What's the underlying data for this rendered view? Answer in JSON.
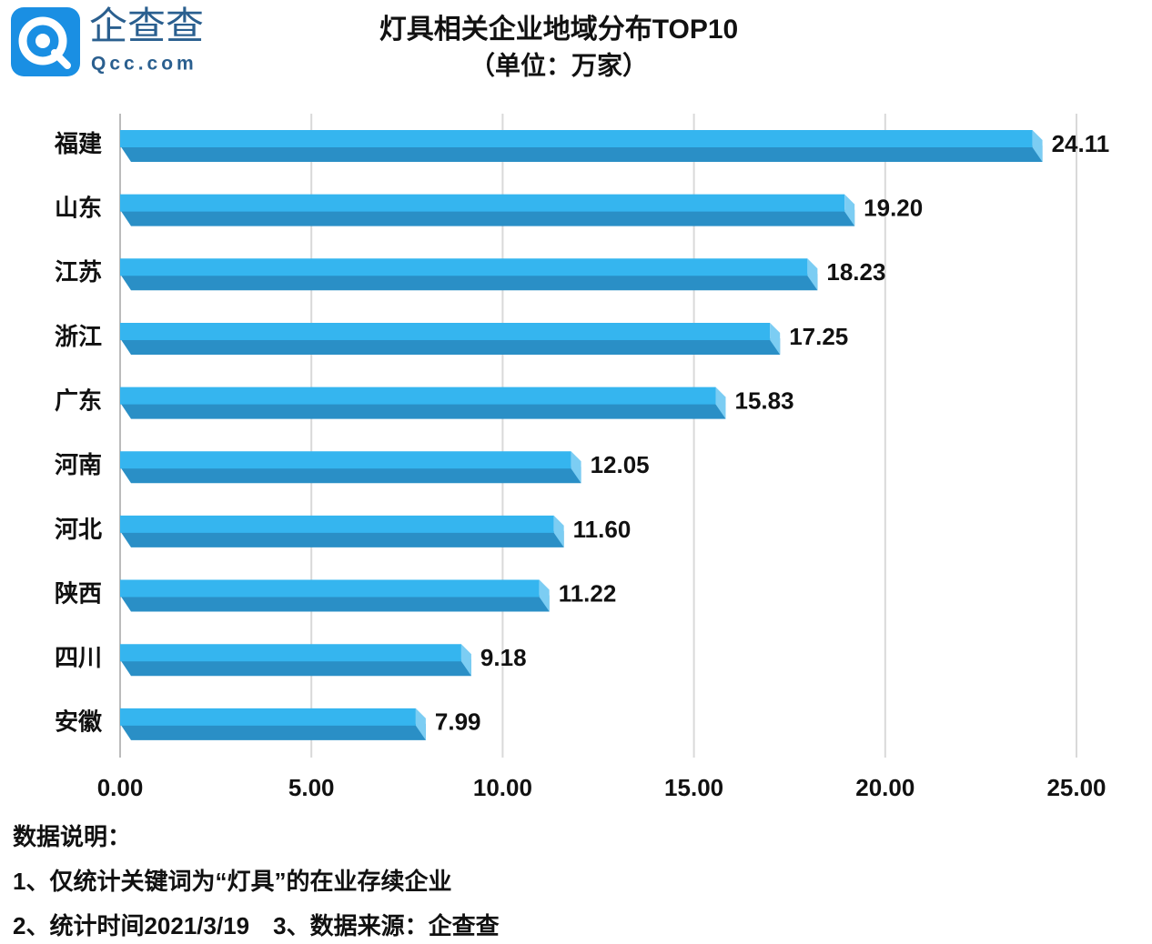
{
  "logo": {
    "name": "企查查",
    "domain": "Qcc.com"
  },
  "chart_data": {
    "type": "bar",
    "orientation": "horizontal",
    "title": "灯具相关企业地域分布TOP10",
    "subtitle": "（单位：万家）",
    "categories": [
      "福建",
      "山东",
      "江苏",
      "浙江",
      "广东",
      "河南",
      "河北",
      "陕西",
      "四川",
      "安徽"
    ],
    "values": [
      24.11,
      19.2,
      18.23,
      17.25,
      15.83,
      12.05,
      11.6,
      11.22,
      9.18,
      7.99
    ],
    "value_labels": [
      "24.11",
      "19.20",
      "18.23",
      "17.25",
      "15.83",
      "12.05",
      "11.60",
      "11.22",
      "9.18",
      "7.99"
    ],
    "color": "#35b5ef",
    "xlim": [
      0,
      25
    ],
    "xticks": [
      {
        "value": 0,
        "label": "0.00"
      },
      {
        "value": 5,
        "label": "5.00"
      },
      {
        "value": 10,
        "label": "10.00"
      },
      {
        "value": 15,
        "label": "15.00"
      },
      {
        "value": 20,
        "label": "20.00"
      },
      {
        "value": 25,
        "label": "25.00"
      }
    ],
    "grid": true,
    "notes": [
      "数据说明：",
      "1、仅统计关键词为“灯具”的在业存续企业",
      "2、统计时间2021/3/19　3、数据来源：企查查"
    ]
  }
}
